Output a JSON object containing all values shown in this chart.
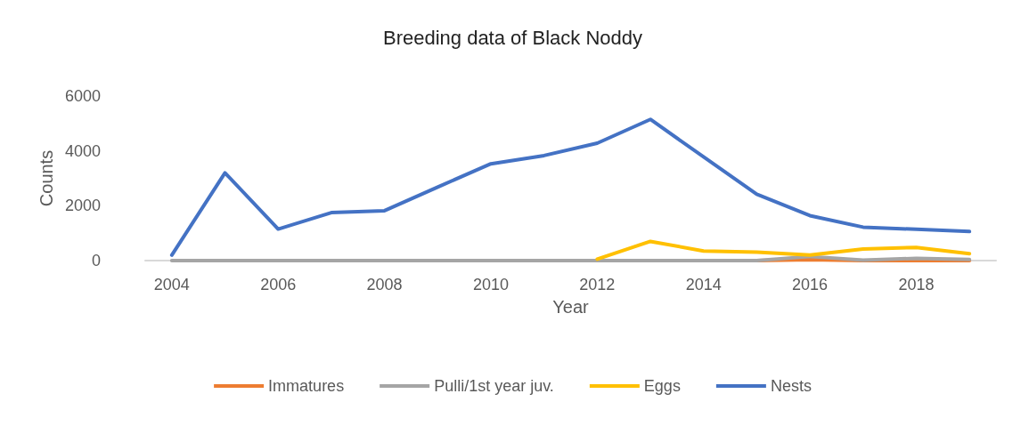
{
  "chart_data": {
    "type": "line",
    "title": "Breeding data of Black Noddy",
    "xlabel": "Year",
    "ylabel": "Counts",
    "categories": [
      "2004",
      null,
      "2006",
      null,
      "2008",
      null,
      "2010",
      null,
      "2012",
      null,
      "2014",
      null,
      "2016",
      null,
      "2018",
      null
    ],
    "series": [
      {
        "name": "Immatures",
        "color": "#ed7d31",
        "values": [
          null,
          null,
          null,
          null,
          null,
          null,
          null,
          null,
          null,
          null,
          null,
          0,
          30,
          0,
          0,
          0
        ]
      },
      {
        "name": "Pulli/1st year juv.",
        "color": "#a5a5a5",
        "values": [
          0,
          0,
          0,
          0,
          0,
          0,
          0,
          0,
          0,
          0,
          0,
          0,
          150,
          20,
          80,
          40
        ]
      },
      {
        "name": "Eggs",
        "color": "#ffc000",
        "values": [
          null,
          null,
          null,
          null,
          null,
          null,
          null,
          null,
          50,
          700,
          350,
          310,
          200,
          420,
          480,
          250
        ]
      },
      {
        "name": "Nests",
        "color": "#4472c4",
        "values": [
          200,
          3200,
          1150,
          1750,
          1820,
          2680,
          3530,
          3830,
          4280,
          5150,
          3780,
          2420,
          1640,
          1220,
          1140,
          1060
        ]
      }
    ],
    "ylim": [
      0,
      6000
    ],
    "yticks": [
      0,
      2000,
      4000,
      6000
    ],
    "grid": false,
    "legend": "bottom",
    "marker": "none",
    "line_style": "solid"
  }
}
